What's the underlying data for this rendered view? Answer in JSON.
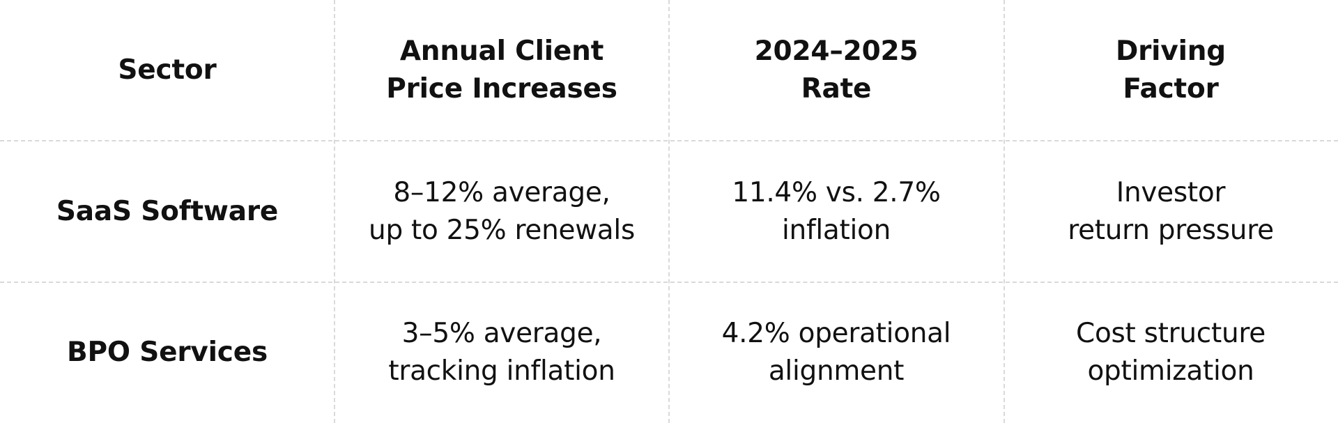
{
  "table": {
    "headers": [
      "Sector",
      "Annual Client\nPrice Increases",
      "2024–2025\nRate",
      "Driving\nFactor"
    ],
    "rows": [
      {
        "sector": "SaaS Software",
        "increases": "8–12% average,\nup to 25% renewals",
        "rate": "11.4% vs. 2.7%\ninflation",
        "factor": "Investor\nreturn pressure"
      },
      {
        "sector": "BPO Services",
        "increases": "3–5% average,\ntracking inflation",
        "rate": "4.2% operational\nalignment",
        "factor": "Cost structure\noptimization"
      }
    ]
  }
}
